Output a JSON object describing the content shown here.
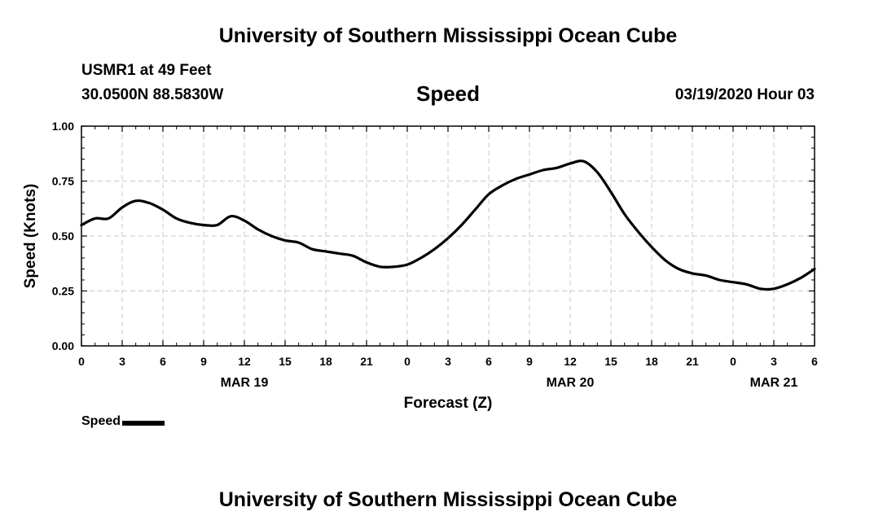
{
  "page": {
    "title_top": "University of Southern Mississippi Ocean Cube",
    "title_bottom": "University of Southern Mississippi Ocean Cube",
    "station": "USMR1 at 49 Feet",
    "coords": "30.0500N 88.5830W",
    "timestamp": "03/19/2020 Hour 03"
  },
  "chart_data": {
    "type": "line",
    "title": "Speed",
    "xlabel": "Forecast (Z)",
    "ylabel": "Speed (Knots)",
    "xlim": [
      0,
      54
    ],
    "ylim": [
      0,
      1
    ],
    "yticks": [
      0,
      0.25,
      0.5,
      0.75,
      1.0
    ],
    "ytick_labels": [
      "0.00",
      "0.25",
      "0.50",
      "0.75",
      "1.00"
    ],
    "xticks": [
      0,
      3,
      6,
      9,
      12,
      15,
      18,
      21,
      24,
      27,
      30,
      33,
      36,
      39,
      42,
      45,
      48,
      51,
      54
    ],
    "xtick_labels": [
      "0",
      "3",
      "6",
      "9",
      "12",
      "15",
      "18",
      "21",
      "0",
      "3",
      "6",
      "9",
      "12",
      "15",
      "18",
      "21",
      "0",
      "3",
      "6"
    ],
    "day_labels": [
      {
        "x": 12,
        "label": "MAR 19"
      },
      {
        "x": 36,
        "label": "MAR 20"
      },
      {
        "x": 51,
        "label": "MAR 21"
      }
    ],
    "grid": true,
    "legend": "bottom-left",
    "series": [
      {
        "name": "Speed",
        "color": "#000000",
        "x": [
          0,
          1,
          2,
          3,
          4,
          5,
          6,
          7,
          8,
          9,
          10,
          11,
          12,
          13,
          14,
          15,
          16,
          17,
          18,
          19,
          20,
          21,
          22,
          23,
          24,
          25,
          26,
          27,
          28,
          29,
          30,
          31,
          32,
          33,
          34,
          35,
          36,
          37,
          38,
          39,
          40,
          41,
          42,
          43,
          44,
          45,
          46,
          47,
          48,
          49,
          50,
          51,
          52,
          53,
          54
        ],
        "y": [
          0.55,
          0.58,
          0.58,
          0.63,
          0.66,
          0.65,
          0.62,
          0.58,
          0.56,
          0.55,
          0.55,
          0.59,
          0.57,
          0.53,
          0.5,
          0.48,
          0.47,
          0.44,
          0.43,
          0.42,
          0.41,
          0.38,
          0.36,
          0.36,
          0.37,
          0.4,
          0.44,
          0.49,
          0.55,
          0.62,
          0.69,
          0.73,
          0.76,
          0.78,
          0.8,
          0.81,
          0.83,
          0.84,
          0.79,
          0.7,
          0.6,
          0.52,
          0.45,
          0.39,
          0.35,
          0.33,
          0.32,
          0.3,
          0.29,
          0.28,
          0.26,
          0.26,
          0.28,
          0.31,
          0.35
        ]
      }
    ]
  }
}
